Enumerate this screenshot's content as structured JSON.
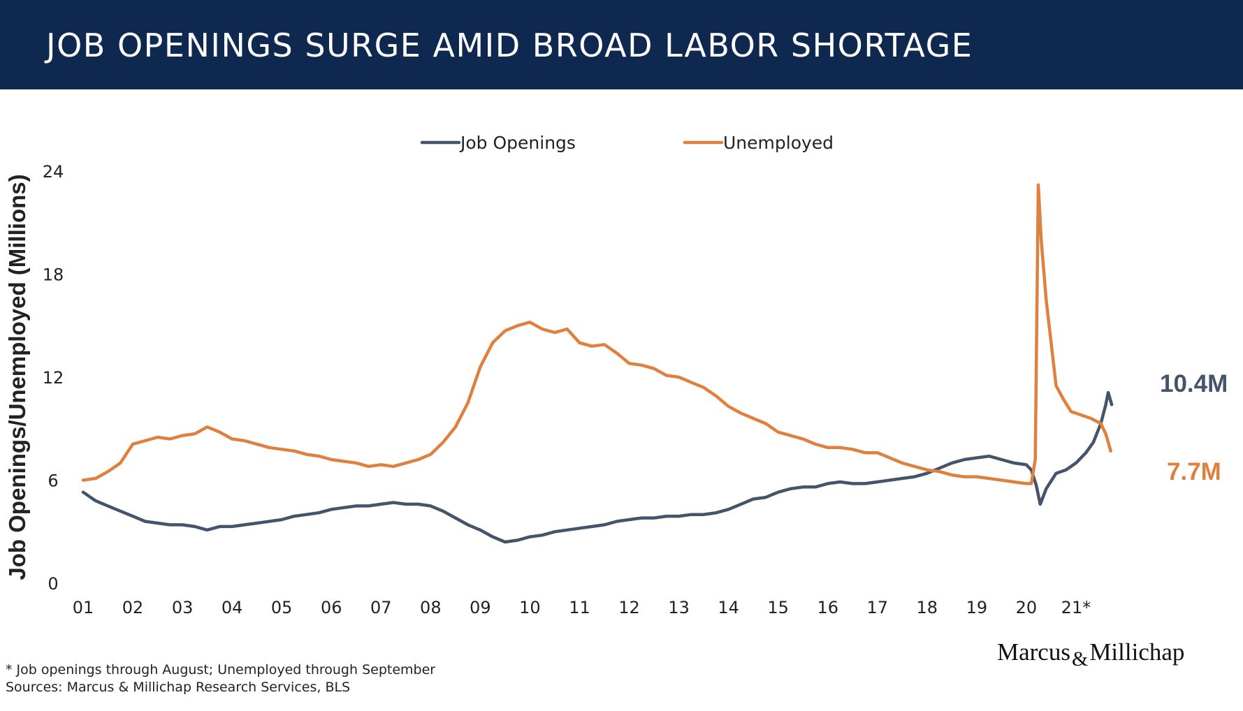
{
  "header": {
    "title": "JOB OPENINGS SURGE AMID BROAD LABOR SHORTAGE"
  },
  "colors": {
    "banner": "#0e2850",
    "job_openings": "#44546a",
    "unemployed": "#e0803f"
  },
  "chart_data": {
    "type": "line",
    "title": "",
    "xlabel": "",
    "ylabel": "Job Openings/Unemployed (Millions)",
    "xlim": [
      2001.0,
      2022.0
    ],
    "ylim": [
      0,
      24
    ],
    "grid": false,
    "legend_position": "top-center",
    "yticks": [
      "0",
      "6",
      "12",
      "18",
      "24"
    ],
    "xticks": [
      "01",
      "02",
      "03",
      "04",
      "05",
      "06",
      "07",
      "08",
      "09",
      "10",
      "11",
      "12",
      "13",
      "14",
      "15",
      "16",
      "17",
      "18",
      "19",
      "20",
      "21*"
    ],
    "series": [
      {
        "name": "Job Openings",
        "color": "#44546a",
        "end_label": "10.4M",
        "points": [
          [
            2001.0,
            5.3
          ],
          [
            2001.25,
            4.8
          ],
          [
            2001.5,
            4.5
          ],
          [
            2001.75,
            4.2
          ],
          [
            2002.0,
            3.9
          ],
          [
            2002.25,
            3.6
          ],
          [
            2002.5,
            3.5
          ],
          [
            2002.75,
            3.4
          ],
          [
            2003.0,
            3.4
          ],
          [
            2003.25,
            3.3
          ],
          [
            2003.5,
            3.1
          ],
          [
            2003.75,
            3.3
          ],
          [
            2004.0,
            3.3
          ],
          [
            2004.25,
            3.4
          ],
          [
            2004.5,
            3.5
          ],
          [
            2004.75,
            3.6
          ],
          [
            2005.0,
            3.7
          ],
          [
            2005.25,
            3.9
          ],
          [
            2005.5,
            4.0
          ],
          [
            2005.75,
            4.1
          ],
          [
            2006.0,
            4.3
          ],
          [
            2006.25,
            4.4
          ],
          [
            2006.5,
            4.5
          ],
          [
            2006.75,
            4.5
          ],
          [
            2007.0,
            4.6
          ],
          [
            2007.25,
            4.7
          ],
          [
            2007.5,
            4.6
          ],
          [
            2007.75,
            4.6
          ],
          [
            2008.0,
            4.5
          ],
          [
            2008.25,
            4.2
          ],
          [
            2008.5,
            3.8
          ],
          [
            2008.75,
            3.4
          ],
          [
            2009.0,
            3.1
          ],
          [
            2009.25,
            2.7
          ],
          [
            2009.5,
            2.4
          ],
          [
            2009.75,
            2.5
          ],
          [
            2010.0,
            2.7
          ],
          [
            2010.25,
            2.8
          ],
          [
            2010.5,
            3.0
          ],
          [
            2010.75,
            3.1
          ],
          [
            2011.0,
            3.2
          ],
          [
            2011.25,
            3.3
          ],
          [
            2011.5,
            3.4
          ],
          [
            2011.75,
            3.6
          ],
          [
            2012.0,
            3.7
          ],
          [
            2012.25,
            3.8
          ],
          [
            2012.5,
            3.8
          ],
          [
            2012.75,
            3.9
          ],
          [
            2013.0,
            3.9
          ],
          [
            2013.25,
            4.0
          ],
          [
            2013.5,
            4.0
          ],
          [
            2013.75,
            4.1
          ],
          [
            2014.0,
            4.3
          ],
          [
            2014.25,
            4.6
          ],
          [
            2014.5,
            4.9
          ],
          [
            2014.75,
            5.0
          ],
          [
            2015.0,
            5.3
          ],
          [
            2015.25,
            5.5
          ],
          [
            2015.5,
            5.6
          ],
          [
            2015.75,
            5.6
          ],
          [
            2016.0,
            5.8
          ],
          [
            2016.25,
            5.9
          ],
          [
            2016.5,
            5.8
          ],
          [
            2016.75,
            5.8
          ],
          [
            2017.0,
            5.9
          ],
          [
            2017.25,
            6.0
          ],
          [
            2017.5,
            6.1
          ],
          [
            2017.75,
            6.2
          ],
          [
            2018.0,
            6.4
          ],
          [
            2018.25,
            6.7
          ],
          [
            2018.5,
            7.0
          ],
          [
            2018.75,
            7.2
          ],
          [
            2019.0,
            7.3
          ],
          [
            2019.25,
            7.4
          ],
          [
            2019.5,
            7.2
          ],
          [
            2019.75,
            7.0
          ],
          [
            2020.0,
            6.9
          ],
          [
            2020.1,
            6.6
          ],
          [
            2020.2,
            5.7
          ],
          [
            2020.28,
            4.6
          ],
          [
            2020.4,
            5.5
          ],
          [
            2020.6,
            6.4
          ],
          [
            2020.8,
            6.6
          ],
          [
            2021.0,
            7.0
          ],
          [
            2021.2,
            7.6
          ],
          [
            2021.35,
            8.2
          ],
          [
            2021.5,
            9.3
          ],
          [
            2021.6,
            10.4
          ],
          [
            2021.65,
            11.1
          ],
          [
            2021.72,
            10.4
          ]
        ]
      },
      {
        "name": "Unemployed",
        "color": "#e0803f",
        "end_label": "7.7M",
        "points": [
          [
            2001.0,
            6.0
          ],
          [
            2001.25,
            6.1
          ],
          [
            2001.5,
            6.5
          ],
          [
            2001.75,
            7.0
          ],
          [
            2002.0,
            8.1
          ],
          [
            2002.25,
            8.3
          ],
          [
            2002.5,
            8.5
          ],
          [
            2002.75,
            8.4
          ],
          [
            2003.0,
            8.6
          ],
          [
            2003.25,
            8.7
          ],
          [
            2003.5,
            9.1
          ],
          [
            2003.75,
            8.8
          ],
          [
            2004.0,
            8.4
          ],
          [
            2004.25,
            8.3
          ],
          [
            2004.5,
            8.1
          ],
          [
            2004.75,
            7.9
          ],
          [
            2005.0,
            7.8
          ],
          [
            2005.25,
            7.7
          ],
          [
            2005.5,
            7.5
          ],
          [
            2005.75,
            7.4
          ],
          [
            2006.0,
            7.2
          ],
          [
            2006.25,
            7.1
          ],
          [
            2006.5,
            7.0
          ],
          [
            2006.75,
            6.8
          ],
          [
            2007.0,
            6.9
          ],
          [
            2007.25,
            6.8
          ],
          [
            2007.5,
            7.0
          ],
          [
            2007.75,
            7.2
          ],
          [
            2008.0,
            7.5
          ],
          [
            2008.25,
            8.2
          ],
          [
            2008.5,
            9.1
          ],
          [
            2008.75,
            10.5
          ],
          [
            2009.0,
            12.6
          ],
          [
            2009.25,
            14.0
          ],
          [
            2009.5,
            14.7
          ],
          [
            2009.75,
            15.0
          ],
          [
            2010.0,
            15.2
          ],
          [
            2010.25,
            14.8
          ],
          [
            2010.5,
            14.6
          ],
          [
            2010.75,
            14.8
          ],
          [
            2011.0,
            14.0
          ],
          [
            2011.25,
            13.8
          ],
          [
            2011.5,
            13.9
          ],
          [
            2011.75,
            13.4
          ],
          [
            2012.0,
            12.8
          ],
          [
            2012.25,
            12.7
          ],
          [
            2012.5,
            12.5
          ],
          [
            2012.75,
            12.1
          ],
          [
            2013.0,
            12.0
          ],
          [
            2013.25,
            11.7
          ],
          [
            2013.5,
            11.4
          ],
          [
            2013.75,
            10.9
          ],
          [
            2014.0,
            10.3
          ],
          [
            2014.25,
            9.9
          ],
          [
            2014.5,
            9.6
          ],
          [
            2014.75,
            9.3
          ],
          [
            2015.0,
            8.8
          ],
          [
            2015.25,
            8.6
          ],
          [
            2015.5,
            8.4
          ],
          [
            2015.75,
            8.1
          ],
          [
            2016.0,
            7.9
          ],
          [
            2016.25,
            7.9
          ],
          [
            2016.5,
            7.8
          ],
          [
            2016.75,
            7.6
          ],
          [
            2017.0,
            7.6
          ],
          [
            2017.25,
            7.3
          ],
          [
            2017.5,
            7.0
          ],
          [
            2017.75,
            6.8
          ],
          [
            2018.0,
            6.6
          ],
          [
            2018.25,
            6.5
          ],
          [
            2018.5,
            6.3
          ],
          [
            2018.75,
            6.2
          ],
          [
            2019.0,
            6.2
          ],
          [
            2019.25,
            6.1
          ],
          [
            2019.5,
            6.0
          ],
          [
            2019.75,
            5.9
          ],
          [
            2020.0,
            5.8
          ],
          [
            2020.1,
            5.8
          ],
          [
            2020.18,
            7.2
          ],
          [
            2020.24,
            23.2
          ],
          [
            2020.3,
            20.0
          ],
          [
            2020.4,
            16.5
          ],
          [
            2020.5,
            14.0
          ],
          [
            2020.6,
            11.5
          ],
          [
            2020.75,
            10.7
          ],
          [
            2020.9,
            10.0
          ],
          [
            2021.1,
            9.8
          ],
          [
            2021.3,
            9.6
          ],
          [
            2021.5,
            9.3
          ],
          [
            2021.6,
            8.7
          ],
          [
            2021.7,
            7.7
          ]
        ]
      }
    ]
  },
  "footer": {
    "note": "* Job openings through August; Unemployed through September",
    "sources": "Sources: Marcus & Millichap Research Services, BLS",
    "logo_left": "Marcus",
    "logo_amp": "&",
    "logo_right": "Millichap"
  }
}
